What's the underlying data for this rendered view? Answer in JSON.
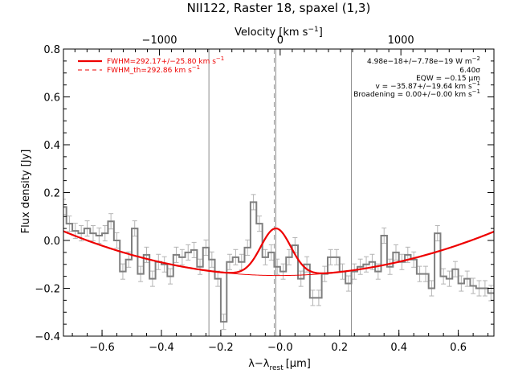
{
  "chart_data": {
    "type": "line",
    "title": "NII122, Raster 18, spaxel (1,3)",
    "xlabel": "λ−λ",
    "xlabel_sub": "rest",
    "xlabel_unit": "[μm]",
    "ylabel": "Flux density [Jy]",
    "top_xlabel": "Velocity [km s",
    "top_xlabel_sup": "−1",
    "top_xlabel_close": "]",
    "xlim": [
      -0.73,
      0.72
    ],
    "ylim": [
      -0.4,
      0.8
    ],
    "x_ticks": [
      -0.6,
      -0.4,
      -0.2,
      0.0,
      0.2,
      0.4,
      0.6
    ],
    "x_tick_labels": [
      "−0.6",
      "−0.4",
      "−0.2",
      "−0.0",
      "0.2",
      "0.4",
      "0.6"
    ],
    "y_ticks": [
      -0.4,
      -0.2,
      0.0,
      0.2,
      0.4,
      0.6,
      0.8
    ],
    "y_tick_labels": [
      "−0.4",
      "−0.2",
      "0.0",
      "0.2",
      "0.4",
      "0.6",
      "0.8"
    ],
    "top_ticks_velocity": [
      -1000,
      0,
      1000
    ],
    "top_tick_labels": [
      "−1000",
      "0",
      "1000"
    ],
    "rest_wavelength_um": 121.9,
    "vertical_lines_x": [
      -0.24,
      -0.0146,
      0.24
    ],
    "dashed_line_x": -0.0146,
    "step_data": {
      "name": "spectrum",
      "color": "#7f7f7f",
      "bin_width": 0.02,
      "x": [
        -0.73,
        -0.71,
        -0.69,
        -0.67,
        -0.65,
        -0.63,
        -0.61,
        -0.59,
        -0.57,
        -0.55,
        -0.53,
        -0.51,
        -0.49,
        -0.47,
        -0.45,
        -0.43,
        -0.41,
        -0.39,
        -0.37,
        -0.35,
        -0.33,
        -0.31,
        -0.29,
        -0.27,
        -0.25,
        -0.23,
        -0.21,
        -0.19,
        -0.17,
        -0.15,
        -0.13,
        -0.11,
        -0.09,
        -0.07,
        -0.05,
        -0.03,
        -0.01,
        0.01,
        0.03,
        0.05,
        0.07,
        0.09,
        0.11,
        0.13,
        0.15,
        0.17,
        0.19,
        0.21,
        0.23,
        0.25,
        0.27,
        0.29,
        0.31,
        0.33,
        0.35,
        0.37,
        0.39,
        0.41,
        0.43,
        0.45,
        0.47,
        0.49,
        0.51,
        0.53,
        0.55,
        0.57,
        0.59,
        0.61,
        0.63,
        0.65,
        0.67,
        0.69,
        0.71
      ],
      "y": [
        0.14,
        0.07,
        0.04,
        0.03,
        0.05,
        0.03,
        0.02,
        0.03,
        0.08,
        0.0,
        -0.13,
        -0.08,
        0.05,
        -0.14,
        -0.06,
        -0.16,
        -0.09,
        -0.1,
        -0.15,
        -0.06,
        -0.07,
        -0.05,
        -0.04,
        -0.11,
        -0.03,
        -0.08,
        -0.16,
        -0.34,
        -0.09,
        -0.07,
        -0.09,
        -0.03,
        0.16,
        0.07,
        -0.07,
        -0.05,
        -0.11,
        -0.13,
        -0.07,
        -0.02,
        -0.16,
        -0.1,
        -0.24,
        -0.24,
        -0.14,
        -0.07,
        -0.07,
        -0.13,
        -0.18,
        -0.13,
        -0.11,
        -0.1,
        -0.09,
        -0.13,
        0.02,
        -0.11,
        -0.05,
        -0.09,
        -0.06,
        -0.08,
        -0.14,
        -0.14,
        -0.2,
        0.03,
        -0.15,
        -0.16,
        -0.12,
        -0.18,
        -0.16,
        -0.19,
        -0.2,
        -0.2,
        -0.22
      ],
      "err": 0.032
    },
    "series": [
      {
        "name": "FWHM=292.17+/−25.80 km s",
        "name_sup": "−1",
        "color": "#ee0000",
        "style": "solid",
        "width": 2.2
      },
      {
        "name": "FWHM_th=292.86 km s",
        "name_sup": "−1",
        "color": "#ee0000",
        "style": "dashed",
        "width": 1
      }
    ],
    "baseline_poly": {
      "c0": -0.1466,
      "c1": 0.0033,
      "c2": 0.3508,
      "c3": -0.002
    },
    "gaussian_fit": {
      "amp": 0.197,
      "center": -0.0146,
      "fwhm": 0.1192
    },
    "annotations": [
      {
        "text": "4.98e−18+/−7.78e−19 W m",
        "sup": "−2"
      },
      {
        "text": "6.40σ",
        "sup": ""
      },
      {
        "text": "EQW = −0.15 μm",
        "sup": ""
      },
      {
        "text": "v = −35.87+/−19.64 km s",
        "sup": "−1"
      },
      {
        "text": "Broadening = 0.00+/−0.00 km s",
        "sup": "−1"
      }
    ],
    "grid": false,
    "legend_placement": "top-left",
    "colors": {
      "fit": "#ee0000",
      "data": "#7f7f7f",
      "error": "#b4b4b4",
      "axis": "#000000"
    }
  }
}
